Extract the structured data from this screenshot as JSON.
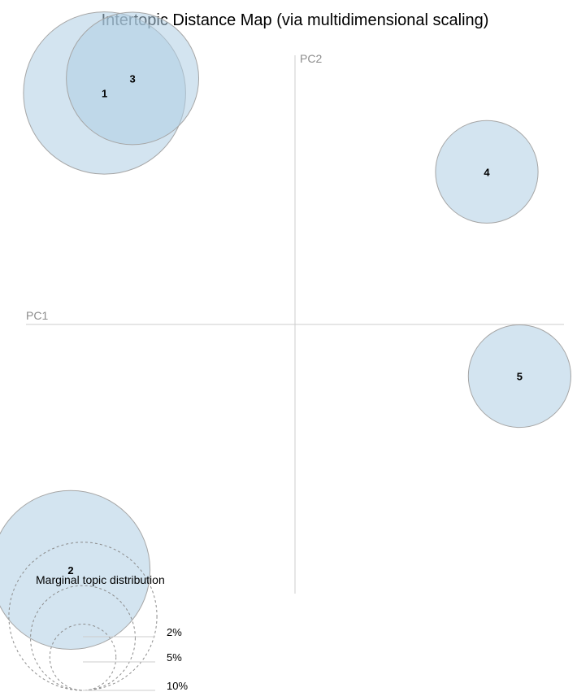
{
  "chart_data": {
    "type": "scatter",
    "title": "Intertopic Distance Map (via multidimensional scaling)",
    "xlabel": "PC1",
    "ylabel": "PC2",
    "xlim": [
      -1,
      1
    ],
    "ylim": [
      -1,
      1
    ],
    "grid": false,
    "topics": [
      {
        "label": "1",
        "x": -0.708,
        "y": 0.86,
        "marginal_pct": 12
      },
      {
        "label": "2",
        "x": -0.834,
        "y": -0.912,
        "marginal_pct": 11.5
      },
      {
        "label": "3",
        "x": -0.604,
        "y": 0.914,
        "marginal_pct": 8
      },
      {
        "label": "4",
        "x": 0.713,
        "y": 0.567,
        "marginal_pct": 4.8
      },
      {
        "label": "5",
        "x": 0.835,
        "y": -0.192,
        "marginal_pct": 4.8
      }
    ],
    "legend": {
      "title": "Marginal topic distribution",
      "entries": [
        {
          "label": "2%",
          "value": 2
        },
        {
          "label": "5%",
          "value": 5
        },
        {
          "label": "10%",
          "value": 10
        }
      ]
    },
    "colors": {
      "bubble_fill": "#aecde3",
      "bubble_stroke": "#a6a6a6",
      "axis": "#cccccc",
      "legend_stroke": "#8c8c8c"
    }
  }
}
